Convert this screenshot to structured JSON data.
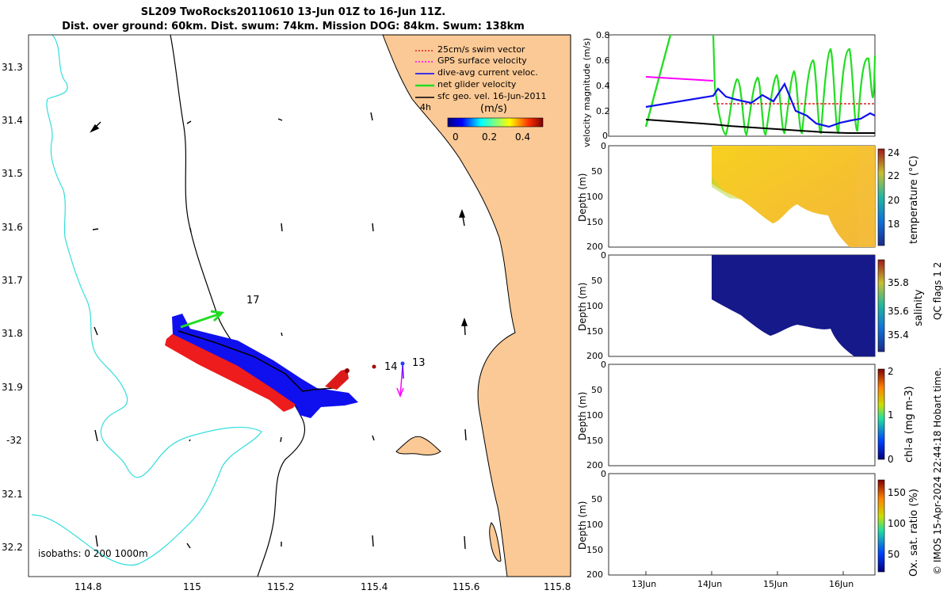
{
  "title": {
    "line1": "SL209 TwoRocks20110610 13-Jun 01Z to 16-Jun 11Z.",
    "line2": "Dist. over ground: 60km. Dist. swum: 74km. Mission DOG: 84km. Swum: 138km"
  },
  "map": {
    "lat_ticks": [
      "31.3",
      "31.4",
      "31.5",
      "31.6",
      "31.7",
      "31.8",
      "31.9",
      "-32",
      "32.1",
      "32.2"
    ],
    "lon_ticks": [
      "114.8",
      "115",
      "115.2",
      "115.4",
      "115.6",
      "115.8"
    ],
    "legend": {
      "items": [
        "25cm/s swim vector",
        "GPS surface velocity",
        "dive-avg current veloc.",
        "net glider velocity",
        "sfc geo. vel. 16-Jun-2011"
      ],
      "colors": [
        "#e02020",
        "#ff00ff",
        "#0000ff",
        "#22dd22",
        "#000000"
      ],
      "unit": "(m/s)",
      "colorbar_ticks": [
        "0",
        "0.2",
        "0.4"
      ],
      "age_label": "4h"
    },
    "labels": {
      "point17": "17",
      "point14": "14",
      "point13": "13"
    },
    "isobaths": "isobaths: 0   200  1000m",
    "land_color": "#fbc995",
    "contour_1000_color": "#33dddd"
  },
  "panels": {
    "date_ticks": [
      "13Jun",
      "14Jun",
      "15Jun",
      "16Jun"
    ],
    "velocity": {
      "ylabel": "velocity magnitude (m/s)",
      "yticks": [
        "0",
        "0.2",
        "0.4",
        "0.6",
        "0.8"
      ]
    },
    "temperature": {
      "ylabel": "Depth (m)",
      "cbar_label": "temperature (°C)",
      "cbar_ticks": [
        "18",
        "20",
        "22",
        "24"
      ]
    },
    "salinity": {
      "ylabel": "Depth (m)",
      "cbar_label": "salinity",
      "cbar_ticks": [
        "35.4",
        "35.6",
        "35.8"
      ]
    },
    "chla": {
      "ylabel": "Depth (m)",
      "cbar_label": "chl-a (mg m-3)",
      "cbar_ticks": [
        "0",
        "1",
        "2"
      ]
    },
    "oxygen": {
      "ylabel": "Depth (m)",
      "cbar_label": "Ox. sat. ratio (%)",
      "cbar_ticks": [
        "50",
        "100",
        "150"
      ]
    },
    "depth_ticks": [
      "0",
      "50",
      "100",
      "150",
      "200"
    ],
    "qc_note": "QC flags 1  2",
    "credit": "© IMOS 15-Apr-2024 22:44:18 Hobart time."
  }
}
